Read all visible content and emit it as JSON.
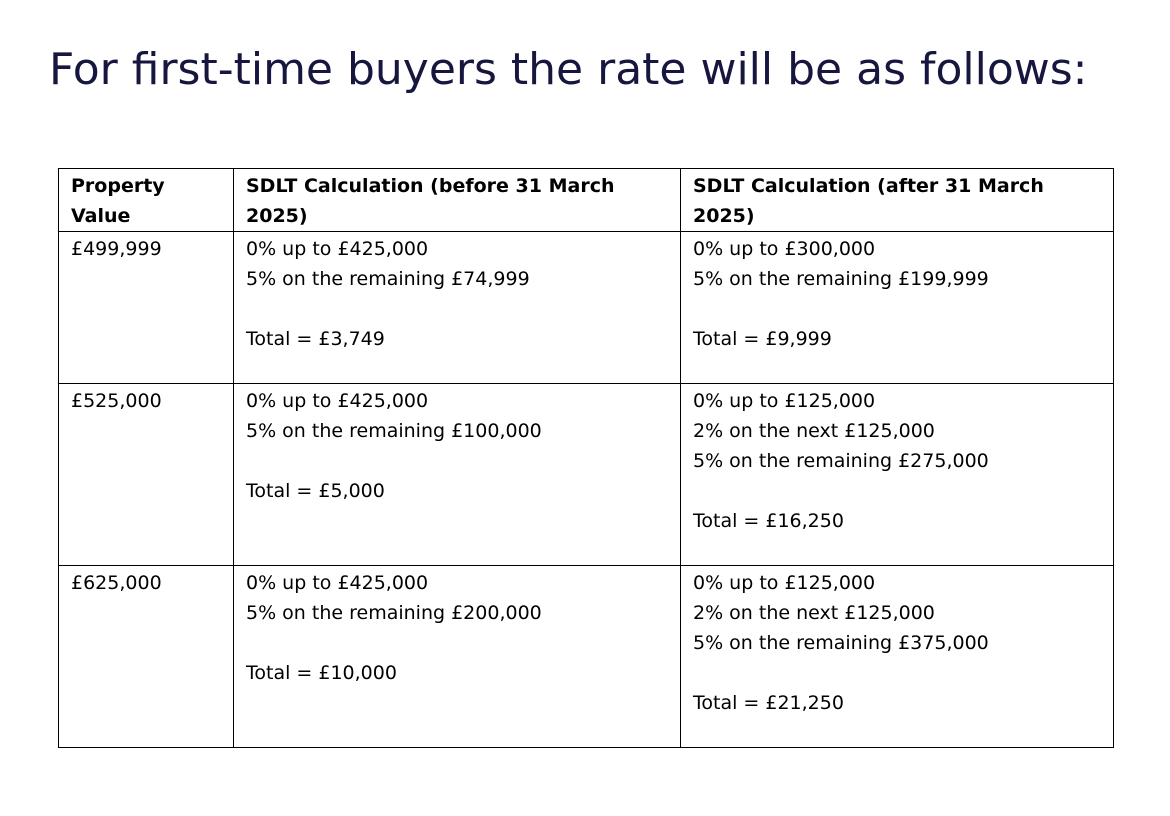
{
  "title": "For first-time buyers the rate will be as follows:",
  "table": {
    "headers": [
      "Property Value",
      "SDLT Calculation (before 31 March 2025)",
      "SDLT Calculation (after 31 March 2025)"
    ],
    "rows": [
      {
        "value": "£499,999",
        "before": {
          "lines": [
            "0% up to £425,000",
            "5% on the remaining £74,999"
          ],
          "total": "Total = £3,749"
        },
        "after": {
          "lines": [
            "0% up to £300,000",
            "5% on the remaining £199,999"
          ],
          "total": "Total = £9,999"
        }
      },
      {
        "value": "£525,000",
        "before": {
          "lines": [
            "0% up to £425,000",
            "5% on the remaining £100,000"
          ],
          "total": "Total = £5,000"
        },
        "after": {
          "lines": [
            "0% up to £125,000",
            "2% on the next £125,000",
            "5% on the remaining £275,000"
          ],
          "total": "Total = £16,250"
        }
      },
      {
        "value": "£625,000",
        "before": {
          "lines": [
            "0% up to £425,000",
            "5% on the remaining £200,000"
          ],
          "total": "Total = £10,000"
        },
        "after": {
          "lines": [
            "0% up to £125,000",
            "2% on the next £125,000",
            "5% on the remaining £375,000"
          ],
          "total": "Total = £21,250"
        }
      }
    ]
  }
}
